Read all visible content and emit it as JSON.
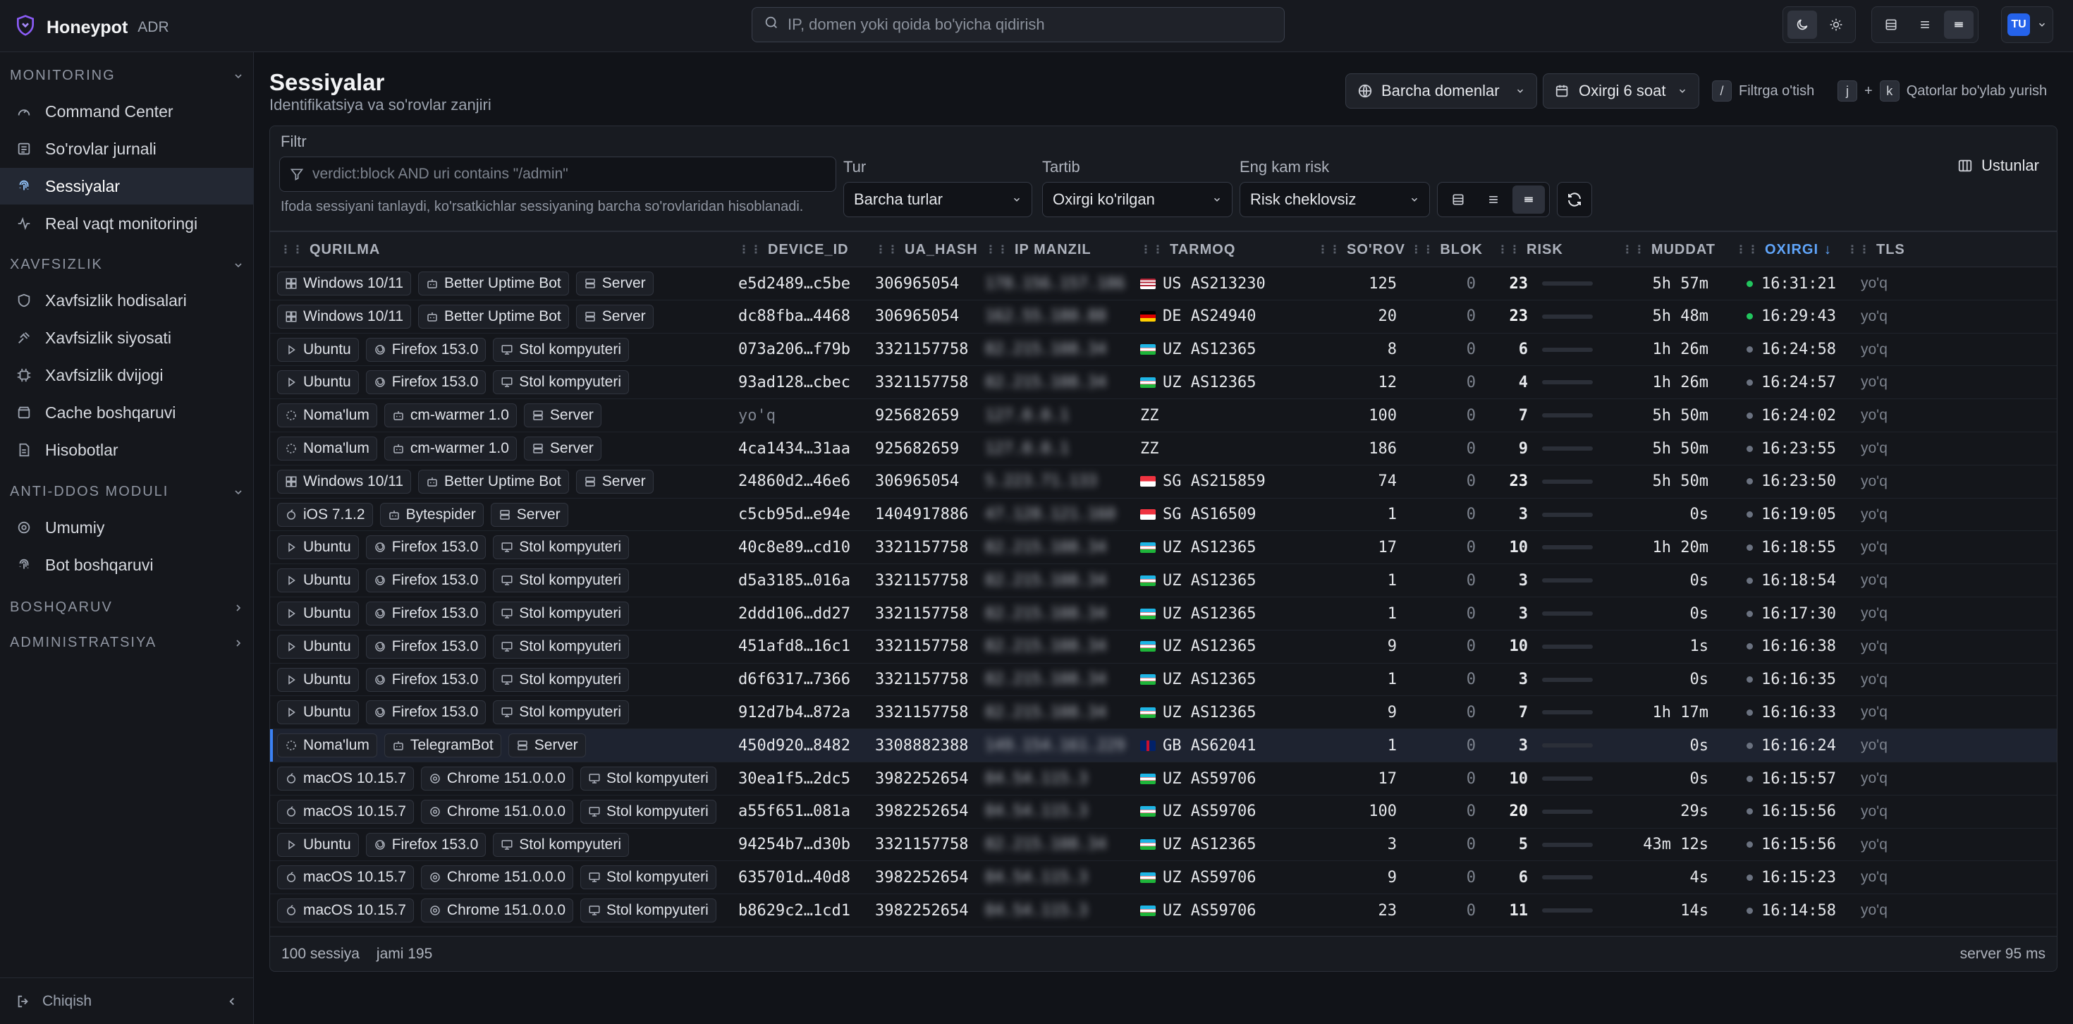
{
  "app": {
    "name": "Honeypot",
    "tag": "ADR",
    "search_placeholder": "IP, domen yoki qoida bo'yicha qidirish",
    "user_initials": "TU"
  },
  "sidebar": {
    "sections": [
      {
        "label": "MONITORING",
        "items": [
          {
            "label": "Command Center",
            "icon": "gauge-icon"
          },
          {
            "label": "So'rovlar jurnali",
            "icon": "list-icon"
          },
          {
            "label": "Sessiyalar",
            "icon": "fingerprint-icon",
            "active": true
          },
          {
            "label": "Real vaqt monitoringi",
            "icon": "activity-icon"
          }
        ]
      },
      {
        "label": "XAVFSIZLIK",
        "items": [
          {
            "label": "Xavfsizlik hodisalari",
            "icon": "shield-icon"
          },
          {
            "label": "Xavfsizlik siyosati",
            "icon": "gavel-icon"
          },
          {
            "label": "Xavfsizlik dvijogi",
            "icon": "cpu-icon"
          },
          {
            "label": "Cache boshqaruvi",
            "icon": "database-icon"
          },
          {
            "label": "Hisobotlar",
            "icon": "file-icon"
          }
        ]
      },
      {
        "label": "ANTI-DDOS MODULI",
        "items": [
          {
            "label": "Umumiy",
            "icon": "target-icon"
          },
          {
            "label": "Bot boshqaruvi",
            "icon": "fingerprint-icon"
          }
        ]
      },
      {
        "label": "BOSHQARUV",
        "items": []
      },
      {
        "label": "ADMINISTRATSIYA",
        "items": []
      }
    ],
    "logout": "Chiqish"
  },
  "page": {
    "title": "Sessiyalar",
    "subtitle": "Identifikatsiya va so'rovlar zanjiri",
    "domain_filter": "Barcha domenlar",
    "time_filter": "Oxirgi 6 soat",
    "hint_filter_key": "/",
    "hint_filter": "Filtrga o'tish",
    "hint_nav_key1": "j",
    "hint_nav_plus": "+",
    "hint_nav_key2": "k",
    "hint_nav": "Qatorlar bo'ylab yurish",
    "columns_button": "Ustunlar"
  },
  "filters": {
    "filter_label": "Filtr",
    "filter_placeholder": "verdict:block AND uri contains \"/admin\"",
    "filter_help": "Ifoda sessiyani tanlaydi, ko'rsatkichlar sessiyaning barcha so'rovlaridan hisoblanadi.",
    "type_label": "Tur",
    "type_value": "Barcha turlar",
    "order_label": "Tartib",
    "order_value": "Oxirgi ko'rilgan",
    "risk_label": "Eng kam risk",
    "risk_value": "Risk cheklovsiz"
  },
  "table": {
    "headers": {
      "device": "QURILMA",
      "device_id": "DEVICE_ID",
      "ua_hash": "UA_HASH",
      "ip": "IP MANZIL",
      "network": "TARMOQ",
      "requests": "SO'ROV",
      "block": "BLOK",
      "risk": "RISK",
      "duration": "MUDDAT",
      "last": "OXIRGI",
      "tls": "TLS"
    },
    "rows": [
      {
        "os": "Windows 10/11",
        "os_icon": "windows-icon",
        "client": "Better Uptime Bot",
        "client_icon": "bot-icon",
        "kind": "Server",
        "kind_icon": "server-icon",
        "device_id": "e5d2489…c5be",
        "ua_hash": "306965054",
        "ip": "178.156.157.186",
        "flag": "US",
        "network": "US AS213230",
        "requests": "125",
        "block": "0",
        "risk": "23",
        "duration": "5h 57m",
        "last": "16:31:21",
        "live": true,
        "tls": "yo'q"
      },
      {
        "os": "Windows 10/11",
        "os_icon": "windows-icon",
        "client": "Better Uptime Bot",
        "client_icon": "bot-icon",
        "kind": "Server",
        "kind_icon": "server-icon",
        "device_id": "dc88fba…4468",
        "ua_hash": "306965054",
        "ip": "162.55.180.88",
        "flag": "DE",
        "network": "DE AS24940",
        "requests": "20",
        "block": "0",
        "risk": "23",
        "duration": "5h 48m",
        "last": "16:29:43",
        "live": true,
        "tls": "yo'q"
      },
      {
        "os": "Ubuntu",
        "os_icon": "linux-icon",
        "client": "Firefox 153.0",
        "client_icon": "firefox-icon",
        "kind": "Stol kompyuteri",
        "kind_icon": "monitor-icon",
        "device_id": "073a206…f79b",
        "ua_hash": "3321157758",
        "ip": "82.215.108.34",
        "flag": "UZ",
        "network": "UZ AS12365",
        "requests": "8",
        "block": "0",
        "risk": "6",
        "duration": "1h 26m",
        "last": "16:24:58",
        "live": false,
        "tls": "yo'q"
      },
      {
        "os": "Ubuntu",
        "os_icon": "linux-icon",
        "client": "Firefox 153.0",
        "client_icon": "firefox-icon",
        "kind": "Stol kompyuteri",
        "kind_icon": "monitor-icon",
        "device_id": "93ad128…cbec",
        "ua_hash": "3321157758",
        "ip": "82.215.108.34",
        "flag": "UZ",
        "network": "UZ AS12365",
        "requests": "12",
        "block": "0",
        "risk": "4",
        "duration": "1h 26m",
        "last": "16:24:57",
        "live": false,
        "tls": "yo'q"
      },
      {
        "os": "Noma'lum",
        "os_icon": "unknown-icon",
        "client": "cm-warmer 1.0",
        "client_icon": "bot-icon",
        "kind": "Server",
        "kind_icon": "server-icon",
        "device_id": "yo'q",
        "ua_hash": "925682659",
        "ip": "127.0.0.1",
        "flag": "",
        "network": "ZZ",
        "requests": "100",
        "block": "0",
        "risk": "7",
        "duration": "5h 50m",
        "last": "16:24:02",
        "live": false,
        "tls": "yo'q"
      },
      {
        "os": "Noma'lum",
        "os_icon": "unknown-icon",
        "client": "cm-warmer 1.0",
        "client_icon": "bot-icon",
        "kind": "Server",
        "kind_icon": "server-icon",
        "device_id": "4ca1434…31aa",
        "ua_hash": "925682659",
        "ip": "127.0.0.1",
        "flag": "",
        "network": "ZZ",
        "requests": "186",
        "block": "0",
        "risk": "9",
        "duration": "5h 50m",
        "last": "16:23:55",
        "live": false,
        "tls": "yo'q"
      },
      {
        "os": "Windows 10/11",
        "os_icon": "windows-icon",
        "client": "Better Uptime Bot",
        "client_icon": "bot-icon",
        "kind": "Server",
        "kind_icon": "server-icon",
        "device_id": "24860d2…46e6",
        "ua_hash": "306965054",
        "ip": "5.223.71.133",
        "flag": "SG",
        "network": "SG AS215859",
        "requests": "74",
        "block": "0",
        "risk": "23",
        "duration": "5h 50m",
        "last": "16:23:50",
        "live": false,
        "tls": "yo'q"
      },
      {
        "os": "iOS 7.1.2",
        "os_icon": "apple-icon",
        "client": "Bytespider",
        "client_icon": "bot-icon",
        "kind": "Server",
        "kind_icon": "server-icon",
        "device_id": "c5cb95d…e94e",
        "ua_hash": "1404917886",
        "ip": "47.128.121.160",
        "flag": "SG",
        "network": "SG AS16509",
        "requests": "1",
        "block": "0",
        "risk": "3",
        "duration": "0s",
        "last": "16:19:05",
        "live": false,
        "tls": "yo'q"
      },
      {
        "os": "Ubuntu",
        "os_icon": "linux-icon",
        "client": "Firefox 153.0",
        "client_icon": "firefox-icon",
        "kind": "Stol kompyuteri",
        "kind_icon": "monitor-icon",
        "device_id": "40c8e89…cd10",
        "ua_hash": "3321157758",
        "ip": "82.215.108.34",
        "flag": "UZ",
        "network": "UZ AS12365",
        "requests": "17",
        "block": "0",
        "risk": "10",
        "duration": "1h 20m",
        "last": "16:18:55",
        "live": false,
        "tls": "yo'q"
      },
      {
        "os": "Ubuntu",
        "os_icon": "linux-icon",
        "client": "Firefox 153.0",
        "client_icon": "firefox-icon",
        "kind": "Stol kompyuteri",
        "kind_icon": "monitor-icon",
        "device_id": "d5a3185…016a",
        "ua_hash": "3321157758",
        "ip": "82.215.108.34",
        "flag": "UZ",
        "network": "UZ AS12365",
        "requests": "1",
        "block": "0",
        "risk": "3",
        "duration": "0s",
        "last": "16:18:54",
        "live": false,
        "tls": "yo'q"
      },
      {
        "os": "Ubuntu",
        "os_icon": "linux-icon",
        "client": "Firefox 153.0",
        "client_icon": "firefox-icon",
        "kind": "Stol kompyuteri",
        "kind_icon": "monitor-icon",
        "device_id": "2ddd106…dd27",
        "ua_hash": "3321157758",
        "ip": "82.215.108.34",
        "flag": "UZ",
        "network": "UZ AS12365",
        "requests": "1",
        "block": "0",
        "risk": "3",
        "duration": "0s",
        "last": "16:17:30",
        "live": false,
        "tls": "yo'q"
      },
      {
        "os": "Ubuntu",
        "os_icon": "linux-icon",
        "client": "Firefox 153.0",
        "client_icon": "firefox-icon",
        "kind": "Stol kompyuteri",
        "kind_icon": "monitor-icon",
        "device_id": "451afd8…16c1",
        "ua_hash": "3321157758",
        "ip": "82.215.108.34",
        "flag": "UZ",
        "network": "UZ AS12365",
        "requests": "9",
        "block": "0",
        "risk": "10",
        "duration": "1s",
        "last": "16:16:38",
        "live": false,
        "tls": "yo'q"
      },
      {
        "os": "Ubuntu",
        "os_icon": "linux-icon",
        "client": "Firefox 153.0",
        "client_icon": "firefox-icon",
        "kind": "Stol kompyuteri",
        "kind_icon": "monitor-icon",
        "device_id": "d6f6317…7366",
        "ua_hash": "3321157758",
        "ip": "82.215.108.34",
        "flag": "UZ",
        "network": "UZ AS12365",
        "requests": "1",
        "block": "0",
        "risk": "3",
        "duration": "0s",
        "last": "16:16:35",
        "live": false,
        "tls": "yo'q"
      },
      {
        "os": "Ubuntu",
        "os_icon": "linux-icon",
        "client": "Firefox 153.0",
        "client_icon": "firefox-icon",
        "kind": "Stol kompyuteri",
        "kind_icon": "monitor-icon",
        "device_id": "912d7b4…872a",
        "ua_hash": "3321157758",
        "ip": "82.215.108.34",
        "flag": "UZ",
        "network": "UZ AS12365",
        "requests": "9",
        "block": "0",
        "risk": "7",
        "duration": "1h 17m",
        "last": "16:16:33",
        "live": false,
        "tls": "yo'q"
      },
      {
        "os": "Noma'lum",
        "os_icon": "unknown-icon",
        "client": "TelegramBot",
        "client_icon": "bot-icon",
        "kind": "Server",
        "kind_icon": "server-icon",
        "device_id": "450d920…8482",
        "ua_hash": "3308882388",
        "ip": "149.154.161.229",
        "flag": "GB",
        "network": "GB AS62041",
        "requests": "1",
        "block": "0",
        "risk": "3",
        "duration": "0s",
        "last": "16:16:24",
        "live": false,
        "tls": "yo'q",
        "highlight": true
      },
      {
        "os": "macOS 10.15.7",
        "os_icon": "apple-icon",
        "client": "Chrome 151.0.0.0",
        "client_icon": "chrome-icon",
        "kind": "Stol kompyuteri",
        "kind_icon": "monitor-icon",
        "device_id": "30ea1f5…2dc5",
        "ua_hash": "3982252654",
        "ip": "84.54.115.3",
        "flag": "UZ",
        "network": "UZ AS59706",
        "requests": "17",
        "block": "0",
        "risk": "10",
        "duration": "0s",
        "last": "16:15:57",
        "live": false,
        "tls": "yo'q"
      },
      {
        "os": "macOS 10.15.7",
        "os_icon": "apple-icon",
        "client": "Chrome 151.0.0.0",
        "client_icon": "chrome-icon",
        "kind": "Stol kompyuteri",
        "kind_icon": "monitor-icon",
        "device_id": "a55f651…081a",
        "ua_hash": "3982252654",
        "ip": "84.54.115.3",
        "flag": "UZ",
        "network": "UZ AS59706",
        "requests": "100",
        "block": "0",
        "risk": "20",
        "duration": "29s",
        "last": "16:15:56",
        "live": false,
        "tls": "yo'q"
      },
      {
        "os": "Ubuntu",
        "os_icon": "linux-icon",
        "client": "Firefox 153.0",
        "client_icon": "firefox-icon",
        "kind": "Stol kompyuteri",
        "kind_icon": "monitor-icon",
        "device_id": "94254b7…d30b",
        "ua_hash": "3321157758",
        "ip": "82.215.108.34",
        "flag": "UZ",
        "network": "UZ AS12365",
        "requests": "3",
        "block": "0",
        "risk": "5",
        "duration": "43m 12s",
        "last": "16:15:56",
        "live": false,
        "tls": "yo'q"
      },
      {
        "os": "macOS 10.15.7",
        "os_icon": "apple-icon",
        "client": "Chrome 151.0.0.0",
        "client_icon": "chrome-icon",
        "kind": "Stol kompyuteri",
        "kind_icon": "monitor-icon",
        "device_id": "635701d…40d8",
        "ua_hash": "3982252654",
        "ip": "84.54.115.3",
        "flag": "UZ",
        "network": "UZ AS59706",
        "requests": "9",
        "block": "0",
        "risk": "6",
        "duration": "4s",
        "last": "16:15:23",
        "live": false,
        "tls": "yo'q"
      },
      {
        "os": "macOS 10.15.7",
        "os_icon": "apple-icon",
        "client": "Chrome 151.0.0.0",
        "client_icon": "chrome-icon",
        "kind": "Stol kompyuteri",
        "kind_icon": "monitor-icon",
        "device_id": "b8629c2…1cd1",
        "ua_hash": "3982252654",
        "ip": "84.54.115.3",
        "flag": "UZ",
        "network": "UZ AS59706",
        "requests": "23",
        "block": "0",
        "risk": "11",
        "duration": "14s",
        "last": "16:14:58",
        "live": false,
        "tls": "yo'q"
      }
    ]
  },
  "footer": {
    "count": "100 sessiya",
    "total": "jami 195",
    "server": "server 95 ms"
  },
  "colors": {
    "accent": "#3b82f6",
    "live_dot": "#22c55e",
    "idle_dot": "#6b7280",
    "background": "#111318"
  }
}
